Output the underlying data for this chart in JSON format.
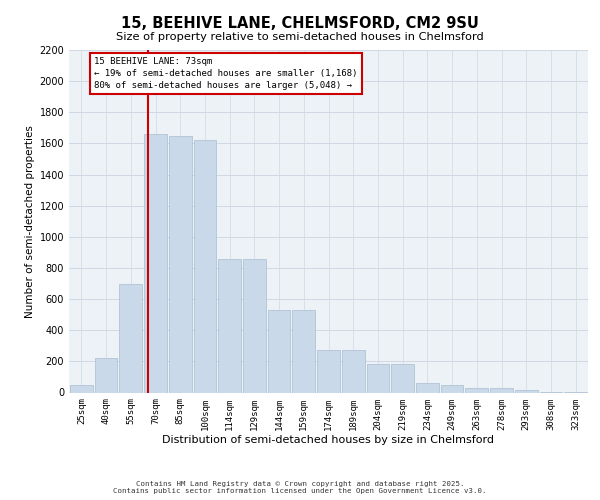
{
  "title1": "15, BEEHIVE LANE, CHELMSFORD, CM2 9SU",
  "title2": "Size of property relative to semi-detached houses in Chelmsford",
  "xlabel": "Distribution of semi-detached houses by size in Chelmsford",
  "ylabel": "Number of semi-detached properties",
  "footer1": "Contains HM Land Registry data © Crown copyright and database right 2025.",
  "footer2": "Contains public sector information licensed under the Open Government Licence v3.0.",
  "annotation_title": "15 BEEHIVE LANE: 73sqm",
  "annotation_line1": "← 19% of semi-detached houses are smaller (1,168)",
  "annotation_line2": "80% of semi-detached houses are larger (5,048) →",
  "bar_color": "#c9d9ea",
  "bar_edge_color": "#a8bdd0",
  "vline_color": "#cc0000",
  "grid_color": "#d0d8e4",
  "bg_color": "#edf2f7",
  "categories": [
    "25sqm",
    "40sqm",
    "55sqm",
    "70sqm",
    "85sqm",
    "100sqm",
    "114sqm",
    "129sqm",
    "144sqm",
    "159sqm",
    "174sqm",
    "189sqm",
    "204sqm",
    "219sqm",
    "234sqm",
    "249sqm",
    "263sqm",
    "278sqm",
    "293sqm",
    "308sqm",
    "323sqm"
  ],
  "values": [
    50,
    220,
    700,
    1660,
    1645,
    1625,
    855,
    855,
    530,
    530,
    270,
    270,
    182,
    182,
    62,
    48,
    28,
    28,
    14,
    5,
    2
  ],
  "ylim": [
    0,
    2200
  ],
  "yticks": [
    0,
    200,
    400,
    600,
    800,
    1000,
    1200,
    1400,
    1600,
    1800,
    2000,
    2200
  ],
  "vline_pos": 2.7,
  "title1_fontsize": 10.5,
  "title2_fontsize": 8.2,
  "ylabel_fontsize": 7.5,
  "xlabel_fontsize": 8.0,
  "tick_fontsize": 7.0,
  "xtick_fontsize": 6.5,
  "annot_fontsize": 6.5,
  "footer_fontsize": 5.3
}
